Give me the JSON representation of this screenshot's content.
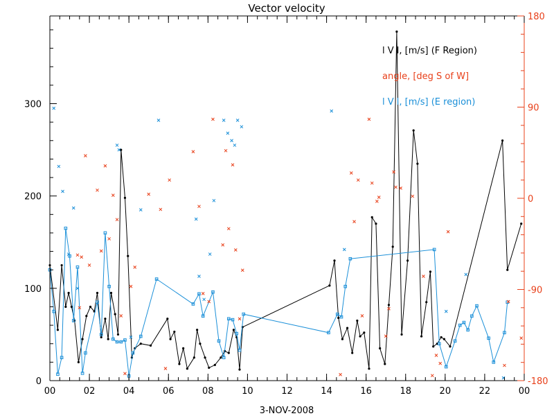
{
  "chart_data": {
    "type": "line",
    "title": "Vector velocity",
    "xlabel": "3-NOV-2008",
    "x_ticks": [
      "00",
      "02",
      "04",
      "06",
      "08",
      "10",
      "12",
      "14",
      "16",
      "18",
      "20",
      "22",
      "00"
    ],
    "xlim": [
      0,
      24
    ],
    "ylim_left": [
      0,
      395
    ],
    "yticks_left": [
      "0",
      "100",
      "200",
      "300"
    ],
    "ylim_right": [
      -180,
      180
    ],
    "yticks_right": [
      "-180",
      "-90",
      "0",
      "90",
      "180"
    ],
    "legend": [
      "l V l, [m/s] (F Region)",
      "angle, [deg S of W]",
      "l V l, [m/s] (E region)"
    ],
    "colors": {
      "f_region": "#000000",
      "angle": "#e8401a",
      "e_region": "#1a8fd8",
      "axis": "#000000",
      "right_axis": "#e8401a"
    },
    "series": [
      {
        "name": "l V l, [m/s] (F Region)",
        "axis": "left",
        "marker": "dot",
        "points": [
          [
            0.0,
            125
          ],
          [
            0.4,
            55
          ],
          [
            0.6,
            125
          ],
          [
            0.8,
            80
          ],
          [
            0.95,
            95
          ],
          [
            1.1,
            80
          ],
          [
            1.25,
            65
          ],
          [
            1.45,
            20
          ],
          [
            1.65,
            45
          ],
          [
            1.85,
            70
          ],
          [
            2.05,
            80
          ],
          [
            2.25,
            75
          ],
          [
            2.4,
            95
          ],
          [
            2.6,
            47
          ],
          [
            2.8,
            67
          ],
          [
            2.95,
            45
          ],
          [
            3.1,
            95
          ],
          [
            3.3,
            72
          ],
          [
            3.45,
            50
          ],
          [
            3.6,
            250
          ],
          [
            3.8,
            198
          ],
          [
            3.95,
            135
          ],
          [
            4.15,
            25
          ],
          [
            4.3,
            35
          ],
          [
            4.6,
            40
          ],
          [
            5.1,
            38
          ],
          [
            5.95,
            67
          ],
          [
            6.1,
            45
          ],
          [
            6.3,
            53
          ],
          [
            6.55,
            18
          ],
          [
            6.75,
            35
          ],
          [
            6.95,
            13
          ],
          [
            7.3,
            25
          ],
          [
            7.45,
            55
          ],
          [
            7.6,
            40
          ],
          [
            7.85,
            25
          ],
          [
            8.05,
            14
          ],
          [
            8.35,
            17
          ],
          [
            8.65,
            25
          ],
          [
            8.85,
            32
          ],
          [
            9.05,
            30
          ],
          [
            9.3,
            55
          ],
          [
            9.45,
            47
          ],
          [
            9.6,
            12
          ],
          [
            9.75,
            58
          ],
          [
            14.15,
            103
          ],
          [
            14.4,
            130
          ],
          [
            14.6,
            68
          ],
          [
            14.8,
            45
          ],
          [
            15.05,
            57
          ],
          [
            15.3,
            30
          ],
          [
            15.55,
            65
          ],
          [
            15.7,
            48
          ],
          [
            15.9,
            52
          ],
          [
            16.15,
            13
          ],
          [
            16.3,
            177
          ],
          [
            16.5,
            170
          ],
          [
            16.7,
            35
          ],
          [
            16.95,
            18
          ],
          [
            17.15,
            82
          ],
          [
            17.35,
            145
          ],
          [
            17.55,
            378
          ],
          [
            17.8,
            50
          ],
          [
            18.1,
            130
          ],
          [
            18.4,
            271
          ],
          [
            18.6,
            235
          ],
          [
            18.8,
            48
          ],
          [
            19.05,
            85
          ],
          [
            19.25,
            118
          ],
          [
            19.4,
            37
          ],
          [
            19.6,
            40
          ],
          [
            19.8,
            47
          ],
          [
            19.95,
            45
          ],
          [
            20.25,
            37
          ],
          [
            22.9,
            260
          ],
          [
            23.15,
            120
          ],
          [
            23.85,
            170
          ]
        ]
      },
      {
        "name": "l V l, [m/s] (E region)",
        "axis": "left",
        "marker": "square",
        "points": [
          [
            0.0,
            120
          ],
          [
            0.2,
            75
          ],
          [
            0.4,
            7
          ],
          [
            0.6,
            25
          ],
          [
            0.8,
            165
          ],
          [
            1.0,
            135
          ],
          [
            1.2,
            65
          ],
          [
            1.4,
            123
          ],
          [
            1.65,
            8
          ],
          [
            1.8,
            30
          ],
          [
            2.4,
            85
          ],
          [
            2.6,
            50
          ],
          [
            2.8,
            160
          ],
          [
            3.0,
            102
          ],
          [
            3.2,
            45
          ],
          [
            3.4,
            42
          ],
          [
            3.6,
            42
          ],
          [
            3.8,
            44
          ],
          [
            4.0,
            5
          ],
          [
            4.2,
            30
          ],
          [
            4.6,
            48
          ],
          [
            5.4,
            110
          ],
          [
            7.25,
            83
          ],
          [
            7.55,
            94
          ],
          [
            7.75,
            70
          ],
          [
            8.25,
            96
          ],
          [
            8.55,
            43
          ],
          [
            8.8,
            25
          ],
          [
            9.05,
            67
          ],
          [
            9.25,
            66
          ],
          [
            9.45,
            51
          ],
          [
            9.6,
            33
          ],
          [
            9.8,
            72
          ],
          [
            14.1,
            52
          ],
          [
            14.55,
            72
          ],
          [
            14.75,
            69
          ],
          [
            14.95,
            102
          ],
          [
            15.2,
            132
          ],
          [
            19.45,
            142
          ],
          [
            19.7,
            40
          ],
          [
            20.05,
            15
          ],
          [
            20.5,
            43
          ],
          [
            20.75,
            60
          ],
          [
            20.95,
            63
          ],
          [
            21.15,
            55
          ],
          [
            21.35,
            70
          ],
          [
            21.6,
            81
          ],
          [
            22.2,
            46
          ],
          [
            22.45,
            20
          ],
          [
            23.0,
            52
          ],
          [
            23.15,
            85
          ]
        ]
      },
      {
        "name": "l V l, [m/s] (E region)",
        "axis": "left",
        "marker": "x",
        "points": [
          [
            0.2,
            295
          ],
          [
            0.45,
            232
          ],
          [
            0.65,
            205
          ],
          [
            0.95,
            137
          ],
          [
            1.2,
            187
          ],
          [
            1.4,
            100
          ],
          [
            3.4,
            255
          ],
          [
            3.5,
            250
          ],
          [
            4.1,
            47
          ],
          [
            4.6,
            185
          ],
          [
            5.5,
            282
          ],
          [
            7.4,
            175
          ],
          [
            7.55,
            113
          ],
          [
            7.8,
            88
          ],
          [
            8.1,
            137
          ],
          [
            8.3,
            195
          ],
          [
            8.8,
            282
          ],
          [
            9.0,
            268
          ],
          [
            9.2,
            260
          ],
          [
            9.35,
            255
          ],
          [
            9.5,
            282
          ],
          [
            9.7,
            275
          ],
          [
            14.25,
            292
          ],
          [
            14.9,
            142
          ],
          [
            20.05,
            75
          ],
          [
            21.05,
            115
          ],
          [
            22.95,
            3
          ]
        ]
      },
      {
        "name": "angle, [deg S of W]",
        "axis": "right",
        "marker": "x",
        "points": [
          [
            1.4,
            -56
          ],
          [
            1.5,
            -108
          ],
          [
            1.6,
            -58
          ],
          [
            1.8,
            42
          ],
          [
            2.0,
            -66
          ],
          [
            2.4,
            8
          ],
          [
            2.6,
            -52
          ],
          [
            2.8,
            32
          ],
          [
            3.0,
            -40
          ],
          [
            3.2,
            3
          ],
          [
            3.4,
            -21
          ],
          [
            3.6,
            -116
          ],
          [
            3.8,
            -173
          ],
          [
            4.1,
            -87
          ],
          [
            4.3,
            -68
          ],
          [
            5.0,
            4
          ],
          [
            5.6,
            -11
          ],
          [
            5.85,
            -168
          ],
          [
            6.05,
            18
          ],
          [
            7.25,
            46
          ],
          [
            7.55,
            -8
          ],
          [
            7.75,
            -94
          ],
          [
            8.05,
            -102
          ],
          [
            8.25,
            78
          ],
          [
            8.75,
            -46
          ],
          [
            8.9,
            47
          ],
          [
            9.05,
            -30
          ],
          [
            9.25,
            33
          ],
          [
            9.4,
            -51
          ],
          [
            9.6,
            -119
          ],
          [
            9.75,
            -71
          ],
          [
            14.7,
            -174
          ],
          [
            15.25,
            25
          ],
          [
            15.4,
            -23
          ],
          [
            15.6,
            18
          ],
          [
            15.8,
            -116
          ],
          [
            16.15,
            78
          ],
          [
            16.3,
            15
          ],
          [
            16.55,
            -3
          ],
          [
            16.65,
            1
          ],
          [
            17.0,
            -136
          ],
          [
            17.15,
            -109
          ],
          [
            17.4,
            26
          ],
          [
            17.5,
            11
          ],
          [
            17.75,
            10
          ],
          [
            18.35,
            2
          ],
          [
            18.9,
            -77
          ],
          [
            19.35,
            -175
          ],
          [
            19.55,
            -155
          ],
          [
            19.75,
            -163
          ],
          [
            20.15,
            -33
          ],
          [
            23.0,
            -165
          ],
          [
            23.2,
            -102
          ],
          [
            23.85,
            -138
          ]
        ]
      }
    ]
  }
}
